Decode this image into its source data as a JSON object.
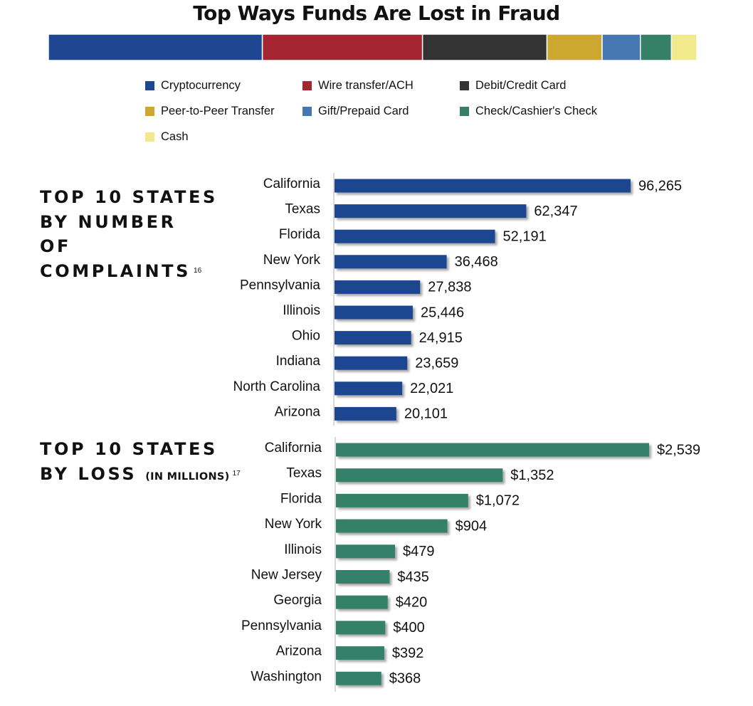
{
  "title": "Top Ways Funds Are Lost in Fraud",
  "colors": {
    "complaints_bar": "#1f4690",
    "loss_bar": "#358067",
    "axis_line": "#cccccc"
  },
  "chart_data": [
    {
      "type": "stacked-bar",
      "title": "Top Ways Funds Are Lost in Fraud",
      "series": [
        {
          "name": "Cryptocurrency",
          "value": 33,
          "color": "#1f4690"
        },
        {
          "name": "Wire transfer/ACH",
          "value": 24.7,
          "color": "#a62532"
        },
        {
          "name": "Debit/Credit Card",
          "value": 19.2,
          "color": "#333333"
        },
        {
          "name": "Peer-to-Peer Transfer",
          "value": 8.5,
          "color": "#cca830"
        },
        {
          "name": "Gift/Prepaid Card",
          "value": 5.9,
          "color": "#4777b3"
        },
        {
          "name": "Check/Cashier's Check",
          "value": 4.8,
          "color": "#358067"
        },
        {
          "name": "Cash",
          "value": 3.9,
          "color": "#f2e88c"
        }
      ]
    },
    {
      "type": "bar",
      "orientation": "horizontal",
      "title": "TOP 10 STATES BY NUMBER OF COMPLAINTS",
      "footnote": "16",
      "categories": [
        "California",
        "Texas",
        "Florida",
        "New York",
        "Pennsylvania",
        "Illinois",
        "Ohio",
        "Indiana",
        "North Carolina",
        "Arizona"
      ],
      "values": [
        96265,
        62347,
        52191,
        36468,
        27838,
        25446,
        24915,
        23659,
        22021,
        20101
      ],
      "value_labels": [
        "96,265",
        "62,347",
        "52,191",
        "36,468",
        "27,838",
        "25,446",
        "24,915",
        "23,659",
        "22,021",
        "20,101"
      ],
      "color": "#1f4690"
    },
    {
      "type": "bar",
      "orientation": "horizontal",
      "title": "TOP 10 STATES BY LOSS",
      "subtitle": "(IN MILLIONS)",
      "footnote": "17",
      "categories": [
        "California",
        "Texas",
        "Florida",
        "New York",
        "Illinois",
        "New Jersey",
        "Georgia",
        "Pennsylvania",
        "Arizona",
        "Washington"
      ],
      "values": [
        2539,
        1352,
        1072,
        904,
        479,
        435,
        420,
        400,
        392,
        368
      ],
      "value_labels": [
        "$2,539",
        "$1,352",
        "$1,072",
        "$904",
        "$479",
        "$435",
        "$420",
        "$400",
        "$392",
        "$368"
      ],
      "color": "#358067"
    }
  ],
  "complaints_heading": {
    "lines": [
      "TOP 10 STATES",
      "BY NUMBER",
      "OF",
      "COMPLAINTS"
    ],
    "footnote": "16"
  },
  "loss_heading": {
    "lines": [
      "TOP 10 STATES",
      "BY LOSS"
    ],
    "sub": "(IN MILLIONS)",
    "footnote": "17"
  }
}
